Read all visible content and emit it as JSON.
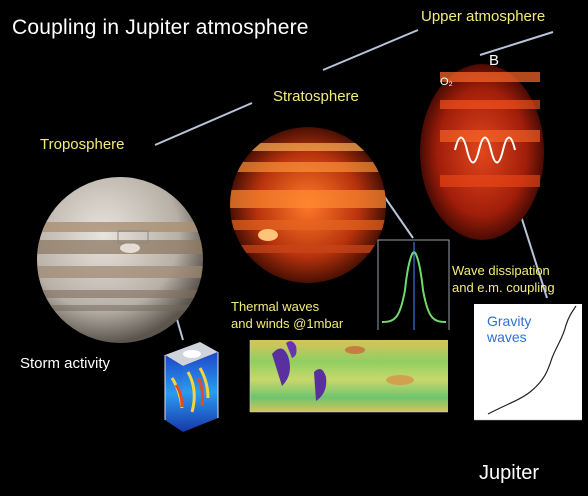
{
  "title": "Coupling in Jupiter atmosphere",
  "labels": {
    "upper_atmosphere": "Upper atmosphere",
    "b": "B",
    "o2": "O₂",
    "stratosphere": "Stratosphere",
    "troposphere": "Troposphere",
    "wave_dissipation_line1": "Wave dissipation",
    "wave_dissipation_line2": "and e.m. coupling",
    "thermal_line1": "Thermal waves",
    "thermal_line2": "and winds @1mbar",
    "storm_activity": "Storm activity",
    "gravity_line1": "Gravity",
    "gravity_line2": "waves",
    "jupiter": "Jupiter"
  },
  "colors": {
    "title": "#ffffff",
    "yellow_labels": "#f2ec7a",
    "gravity_label": "#2e6fd1",
    "connector_lines": "#b8c4d8",
    "stratosphere_glow": "#e0531a",
    "upper_glow": "#c2290f",
    "profile_curve": "#6fdc6a"
  },
  "icons": {
    "jupiter_visible": "jupiter-globe",
    "storm_cube": "storm-3d-cube",
    "wave_helix": "wave-helix-icon"
  }
}
